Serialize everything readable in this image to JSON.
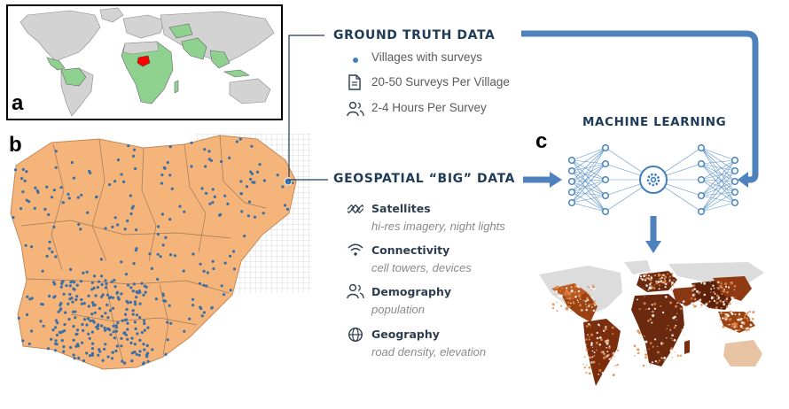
{
  "panels": {
    "a": "a",
    "b": "b",
    "c": "c"
  },
  "ground_truth": {
    "title": "GROUND TRUTH DATA",
    "items": [
      {
        "icon": "dot-icon",
        "text": "Villages with surveys"
      },
      {
        "icon": "document-icon",
        "text": "20-50 Surveys Per Village"
      },
      {
        "icon": "people-icon",
        "text": "2-4 Hours Per Survey"
      }
    ]
  },
  "geospatial": {
    "title": "GEOSPATIAL “BIG” DATA",
    "sources": [
      {
        "icon": "satellite-icon",
        "title": "Satellites",
        "subtitle": "hi-res imagery, night lights"
      },
      {
        "icon": "wifi-icon",
        "title": "Connectivity",
        "subtitle": "cell towers, devices"
      },
      {
        "icon": "people-icon",
        "title": "Demography",
        "subtitle": "population"
      },
      {
        "icon": "globe-icon",
        "title": "Geography",
        "subtitle": "road density, elevation"
      }
    ]
  },
  "ml": {
    "title": "MACHINE LEARNING",
    "center_icon": "gear-icon"
  },
  "colors": {
    "heading": "#1f3b57",
    "arrow": "#4f81bd",
    "network": "#3f7fc0",
    "highlight_country": "#ff0000",
    "surveyed_countries": "#8fd18f",
    "other_land": "#d3d3d3",
    "nigeria_fill": "#f4b47a",
    "survey_dots": "#3a6fa8",
    "prediction_dark": "#6b2a0f",
    "prediction_light": "#e0894a"
  }
}
